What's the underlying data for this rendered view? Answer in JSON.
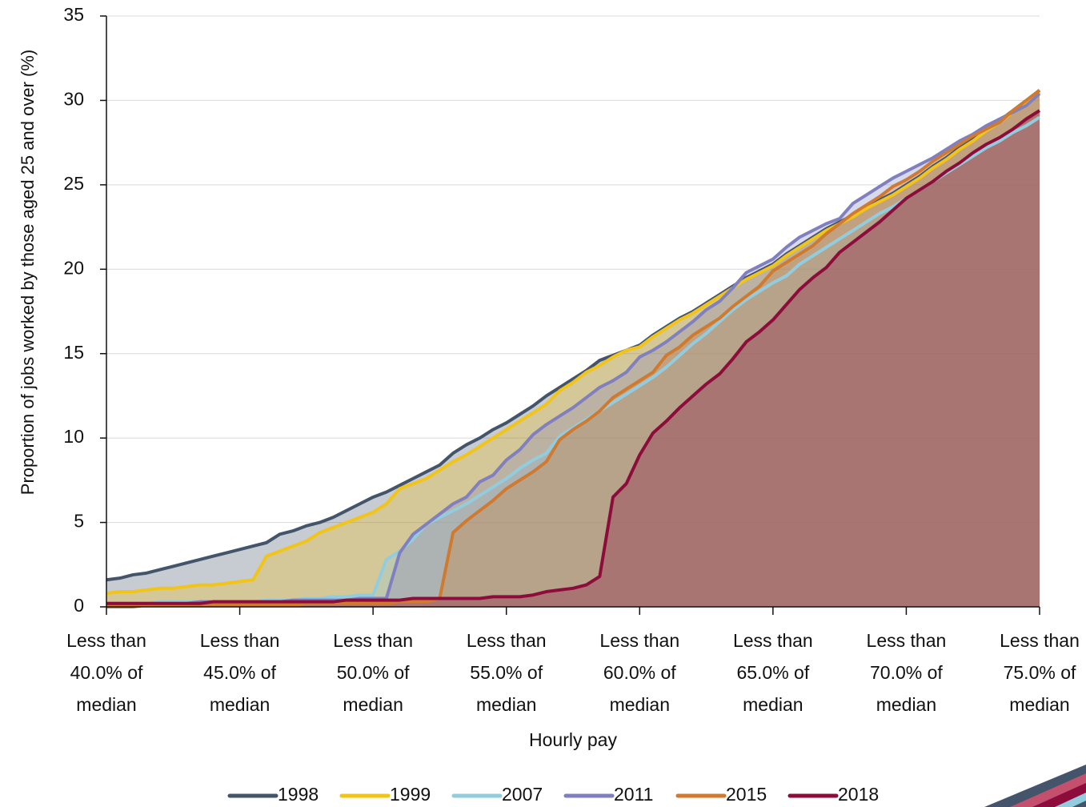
{
  "chart_data": {
    "type": "area",
    "ylabel": "Proportion of jobs worked by those aged 25 and over (%)",
    "xlabel": "Hourly pay",
    "xlim": [
      40,
      75
    ],
    "ylim": [
      0,
      35
    ],
    "yticks": [
      0,
      5,
      10,
      15,
      20,
      25,
      30,
      35
    ],
    "xticks": [
      {
        "value": 40,
        "label": "Less than 40.0% of median"
      },
      {
        "value": 45,
        "label": "Less than 45.0% of median"
      },
      {
        "value": 50,
        "label": "Less than 50.0% of median"
      },
      {
        "value": 55,
        "label": "Less than 55.0% of median"
      },
      {
        "value": 60,
        "label": "Less than 60.0% of median"
      },
      {
        "value": 65,
        "label": "Less than 65.0% of median"
      },
      {
        "value": 70,
        "label": "Less than 70.0% of median"
      },
      {
        "value": 75,
        "label": "Less than 75.0% of median"
      }
    ],
    "grid": true,
    "legend": "bottom",
    "x": [
      40,
      40.5,
      41,
      41.5,
      42,
      42.5,
      43,
      43.5,
      44,
      44.5,
      45,
      45.5,
      46,
      46.5,
      47,
      47.5,
      48,
      48.5,
      49,
      49.5,
      50,
      50.5,
      51,
      51.5,
      52,
      52.5,
      53,
      53.5,
      54,
      54.5,
      55,
      55.5,
      56,
      56.5,
      57,
      57.5,
      58,
      58.5,
      59,
      59.5,
      60,
      60.5,
      61,
      61.5,
      62,
      62.5,
      63,
      63.5,
      64,
      64.5,
      65,
      65.5,
      66,
      66.5,
      67,
      67.5,
      68,
      68.5,
      69,
      69.5,
      70,
      70.5,
      71,
      71.5,
      72,
      72.5,
      73,
      73.5,
      74,
      74.5,
      75
    ],
    "series": [
      {
        "name": "1998",
        "color": "#44546a",
        "values": [
          1.6,
          1.7,
          1.9,
          2.0,
          2.2,
          2.4,
          2.6,
          2.8,
          3.0,
          3.2,
          3.4,
          3.6,
          3.8,
          4.3,
          4.5,
          4.8,
          5.0,
          5.3,
          5.7,
          6.1,
          6.5,
          6.8,
          7.2,
          7.6,
          8.0,
          8.4,
          9.1,
          9.6,
          10.0,
          10.5,
          10.9,
          11.4,
          11.9,
          12.5,
          13.0,
          13.5,
          14.0,
          14.6,
          14.9,
          15.2,
          15.5,
          16.1,
          16.6,
          17.1,
          17.5,
          18.0,
          18.5,
          19.0,
          19.5,
          19.9,
          20.3,
          20.9,
          21.4,
          21.9,
          22.4,
          22.8,
          23.2,
          23.7,
          24.1,
          24.5,
          25.0,
          25.5,
          26.1,
          26.6,
          27.2,
          27.7,
          28.3,
          28.8,
          29.4,
          30.0,
          30.6
        ]
      },
      {
        "name": "1999",
        "color": "#f2c417",
        "values": [
          0.8,
          0.9,
          0.9,
          1.0,
          1.1,
          1.1,
          1.2,
          1.3,
          1.3,
          1.4,
          1.5,
          1.6,
          3.0,
          3.3,
          3.6,
          3.9,
          4.4,
          4.7,
          5.0,
          5.3,
          5.6,
          6.1,
          7.0,
          7.3,
          7.6,
          8.1,
          8.6,
          9.0,
          9.5,
          10.0,
          10.5,
          11.0,
          11.5,
          12.0,
          12.8,
          13.3,
          13.9,
          14.3,
          14.8,
          15.2,
          15.4,
          16.0,
          16.5,
          17.0,
          17.4,
          17.9,
          18.4,
          18.9,
          19.4,
          19.8,
          20.2,
          20.8,
          21.3,
          21.8,
          22.3,
          22.7,
          23.1,
          23.6,
          24.0,
          24.4,
          24.9,
          25.4,
          26.0,
          26.5,
          27.1,
          27.6,
          28.2,
          28.7,
          29.3,
          29.9,
          30.5
        ]
      },
      {
        "name": "2007",
        "color": "#92cddf",
        "values": [
          0.2,
          0.2,
          0.2,
          0.2,
          0.3,
          0.3,
          0.3,
          0.3,
          0.3,
          0.3,
          0.3,
          0.3,
          0.4,
          0.4,
          0.4,
          0.5,
          0.5,
          0.6,
          0.6,
          0.7,
          0.7,
          2.8,
          3.3,
          4.0,
          4.9,
          5.3,
          5.7,
          6.1,
          6.6,
          7.1,
          7.6,
          8.2,
          8.7,
          9.1,
          10.1,
          10.6,
          11.1,
          11.6,
          12.1,
          12.6,
          13.1,
          13.6,
          14.2,
          14.9,
          15.6,
          16.2,
          16.9,
          17.6,
          18.2,
          18.7,
          19.2,
          19.6,
          20.3,
          20.8,
          21.3,
          21.8,
          22.3,
          22.8,
          23.3,
          23.7,
          24.2,
          24.7,
          25.2,
          25.7,
          26.2,
          26.7,
          27.2,
          27.6,
          28.1,
          28.5,
          29.0
        ]
      },
      {
        "name": "2011",
        "color": "#8080c0",
        "values": [
          0.2,
          0.2,
          0.2,
          0.2,
          0.2,
          0.2,
          0.2,
          0.3,
          0.3,
          0.3,
          0.3,
          0.3,
          0.3,
          0.3,
          0.4,
          0.4,
          0.4,
          0.4,
          0.4,
          0.5,
          0.5,
          0.5,
          3.2,
          4.3,
          4.9,
          5.5,
          6.1,
          6.5,
          7.4,
          7.8,
          8.7,
          9.3,
          10.2,
          10.8,
          11.3,
          11.8,
          12.4,
          13.0,
          13.4,
          13.9,
          14.8,
          15.2,
          15.7,
          16.3,
          16.9,
          17.6,
          18.1,
          18.9,
          19.8,
          20.2,
          20.6,
          21.3,
          21.9,
          22.3,
          22.7,
          23.0,
          23.9,
          24.4,
          24.9,
          25.4,
          25.8,
          26.2,
          26.6,
          27.1,
          27.6,
          28.0,
          28.5,
          28.9,
          29.3,
          29.7,
          30.4
        ]
      },
      {
        "name": "2015",
        "color": "#d07a30",
        "values": [
          0.0,
          0.0,
          0.0,
          0.1,
          0.1,
          0.1,
          0.1,
          0.1,
          0.1,
          0.1,
          0.1,
          0.1,
          0.1,
          0.1,
          0.1,
          0.2,
          0.2,
          0.2,
          0.2,
          0.2,
          0.2,
          0.2,
          0.3,
          0.3,
          0.3,
          0.5,
          4.4,
          5.1,
          5.7,
          6.3,
          7.0,
          7.5,
          8.0,
          8.6,
          9.9,
          10.5,
          11.0,
          11.6,
          12.4,
          12.9,
          13.4,
          13.9,
          14.9,
          15.4,
          16.1,
          16.6,
          17.1,
          17.8,
          18.4,
          19.0,
          19.9,
          20.4,
          20.9,
          21.4,
          22.1,
          22.7,
          23.3,
          23.8,
          24.3,
          24.9,
          25.3,
          25.8,
          26.4,
          26.9,
          27.4,
          27.9,
          28.3,
          28.7,
          29.4,
          30.0,
          30.6
        ]
      },
      {
        "name": "2018",
        "color": "#8c0d3c",
        "values": [
          0.2,
          0.2,
          0.2,
          0.2,
          0.2,
          0.2,
          0.2,
          0.2,
          0.3,
          0.3,
          0.3,
          0.3,
          0.3,
          0.3,
          0.3,
          0.3,
          0.3,
          0.3,
          0.4,
          0.4,
          0.4,
          0.4,
          0.4,
          0.5,
          0.5,
          0.5,
          0.5,
          0.5,
          0.5,
          0.6,
          0.6,
          0.6,
          0.7,
          0.9,
          1.0,
          1.1,
          1.3,
          1.8,
          6.5,
          7.3,
          9.0,
          10.3,
          11.0,
          11.8,
          12.5,
          13.2,
          13.8,
          14.7,
          15.7,
          16.3,
          17.0,
          17.9,
          18.8,
          19.5,
          20.1,
          21.0,
          21.6,
          22.2,
          22.8,
          23.5,
          24.2,
          24.7,
          25.2,
          25.8,
          26.3,
          26.9,
          27.4,
          27.8,
          28.3,
          28.9,
          29.4
        ]
      }
    ]
  }
}
